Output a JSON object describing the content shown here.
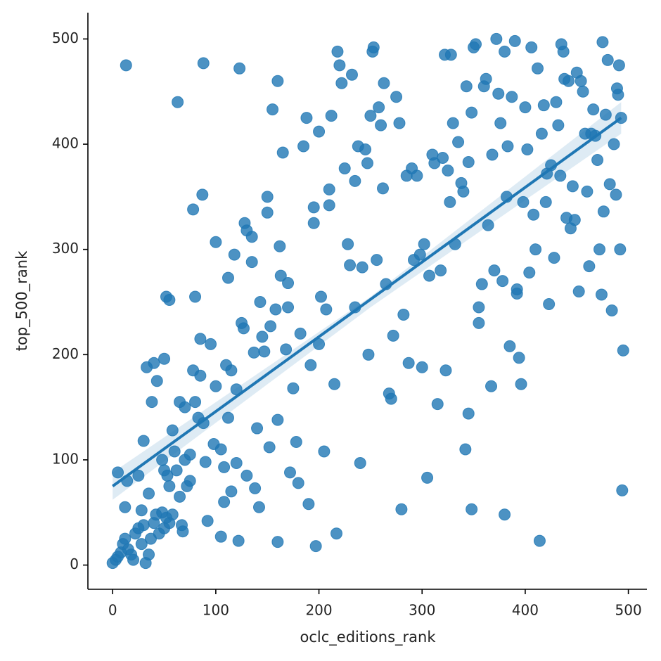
{
  "chart_data": {
    "type": "scatter",
    "x_label": "oclc_editions_rank",
    "y_label": "top_500_rank",
    "xlim": [
      -24,
      518
    ],
    "ylim": [
      -23,
      525
    ],
    "xticks": [
      0,
      100,
      200,
      300,
      400,
      500
    ],
    "yticks": [
      0,
      100,
      200,
      300,
      400,
      500
    ],
    "series": [
      {
        "color": "#1f77b4",
        "x": [
          0,
          3,
          5,
          8,
          10,
          12,
          15,
          18,
          20,
          22,
          25,
          28,
          30,
          32,
          35,
          37,
          40,
          42,
          45,
          48,
          50,
          52,
          55,
          58,
          5,
          14,
          12,
          25,
          28,
          30,
          35,
          38,
          40,
          43,
          33,
          50,
          52,
          55,
          48,
          50,
          53,
          55,
          58,
          60,
          62,
          65,
          67,
          68,
          65,
          70,
          70,
          72,
          75,
          75,
          78,
          80,
          80,
          78,
          85,
          87,
          85,
          83,
          88,
          90,
          92,
          95,
          98,
          100,
          100,
          105,
          105,
          108,
          110,
          108,
          112,
          115,
          112,
          115,
          118,
          120,
          120,
          122,
          125,
          127,
          128,
          130,
          130,
          135,
          135,
          137,
          138,
          140,
          142,
          143,
          145,
          147,
          150,
          150,
          152,
          153,
          155,
          158,
          160,
          160,
          162,
          163,
          165,
          168,
          170,
          170,
          172,
          175,
          178,
          180,
          182,
          185,
          188,
          190,
          192,
          195,
          195,
          197,
          200,
          200,
          202,
          205,
          207,
          210,
          210,
          212,
          215,
          217,
          218,
          220,
          222,
          225,
          228,
          230,
          232,
          235,
          235,
          238,
          240,
          242,
          245,
          247,
          248,
          250,
          252,
          253,
          256,
          258,
          260,
          262,
          263,
          265,
          268,
          270,
          272,
          275,
          278,
          280,
          282,
          285,
          287,
          290,
          292,
          295,
          298,
          300,
          302,
          305,
          307,
          310,
          312,
          315,
          318,
          320,
          322,
          323,
          325,
          327,
          328,
          330,
          332,
          335,
          338,
          340,
          342,
          343,
          345,
          348,
          350,
          352,
          355,
          355,
          358,
          360,
          362,
          364,
          367,
          368,
          370,
          372,
          374,
          376,
          378,
          380,
          382,
          383,
          385,
          387,
          390,
          392,
          394,
          396,
          398,
          400,
          402,
          404,
          406,
          408,
          410,
          412,
          414,
          416,
          418,
          420,
          421,
          423,
          425,
          428,
          430,
          432,
          434,
          435,
          437,
          438,
          440,
          442,
          444,
          446,
          448,
          450,
          452,
          454,
          456,
          458,
          460,
          462,
          464,
          466,
          468,
          470,
          472,
          474,
          475,
          476,
          478,
          480,
          482,
          484,
          486,
          488,
          489,
          490,
          491,
          492,
          493,
          494,
          495,
          13,
          63,
          88,
          123,
          160,
          348,
          380,
          345,
          392
        ],
        "values": [
          2,
          5,
          8,
          12,
          20,
          25,
          15,
          10,
          5,
          30,
          35,
          20,
          38,
          2,
          10,
          25,
          40,
          48,
          30,
          50,
          35,
          45,
          40,
          48,
          88,
          80,
          55,
          85,
          52,
          118,
          68,
          155,
          192,
          175,
          188,
          196,
          255,
          252,
          100,
          90,
          85,
          75,
          128,
          108,
          90,
          65,
          38,
          32,
          155,
          150,
          100,
          75,
          80,
          105,
          185,
          155,
          255,
          338,
          215,
          352,
          180,
          140,
          135,
          98,
          42,
          210,
          115,
          170,
          307,
          27,
          110,
          60,
          190,
          93,
          140,
          185,
          273,
          70,
          295,
          167,
          97,
          23,
          230,
          225,
          325,
          85,
          318,
          288,
          312,
          202,
          73,
          130,
          55,
          250,
          217,
          203,
          350,
          335,
          112,
          227,
          433,
          243,
          22,
          138,
          303,
          275,
          392,
          205,
          245,
          268,
          88,
          168,
          117,
          78,
          220,
          398,
          425,
          58,
          190,
          340,
          325,
          18,
          412,
          210,
          255,
          108,
          243,
          357,
          342,
          427,
          172,
          30,
          488,
          475,
          458,
          377,
          305,
          285,
          466,
          365,
          245,
          398,
          97,
          283,
          395,
          382,
          200,
          427,
          488,
          492,
          290,
          435,
          418,
          358,
          458,
          267,
          163,
          158,
          218,
          445,
          420,
          53,
          238,
          370,
          192,
          377,
          290,
          370,
          295,
          188,
          305,
          83,
          275,
          390,
          382,
          153,
          280,
          387,
          485,
          185,
          375,
          345,
          485,
          420,
          305,
          402,
          363,
          355,
          110,
          455,
          383,
          430,
          492,
          495,
          245,
          230,
          267,
          455,
          462,
          323,
          170,
          390,
          280,
          500,
          448,
          420,
          270,
          488,
          350,
          398,
          208,
          445,
          498,
          258,
          197,
          172,
          345,
          435,
          395,
          278,
          492,
          333,
          300,
          472,
          23,
          410,
          437,
          345,
          372,
          248,
          380,
          292,
          440,
          418,
          370,
          495,
          488,
          462,
          330,
          460,
          320,
          360,
          328,
          468,
          260,
          460,
          450,
          410,
          355,
          284,
          410,
          433,
          408,
          385,
          300,
          257,
          497,
          336,
          428,
          480,
          362,
          242,
          400,
          352,
          453,
          447,
          475,
          300,
          425,
          71,
          204,
          475,
          440,
          477,
          472,
          460,
          53,
          48,
          144,
          262
        ]
      }
    ],
    "fit": {
      "x": [
        0,
        493
      ],
      "values": [
        75,
        425
      ],
      "ci_x": [
        0,
        250,
        493
      ],
      "ci_lower": [
        62,
        245,
        410
      ],
      "ci_upper": [
        88,
        255,
        440
      ]
    }
  }
}
